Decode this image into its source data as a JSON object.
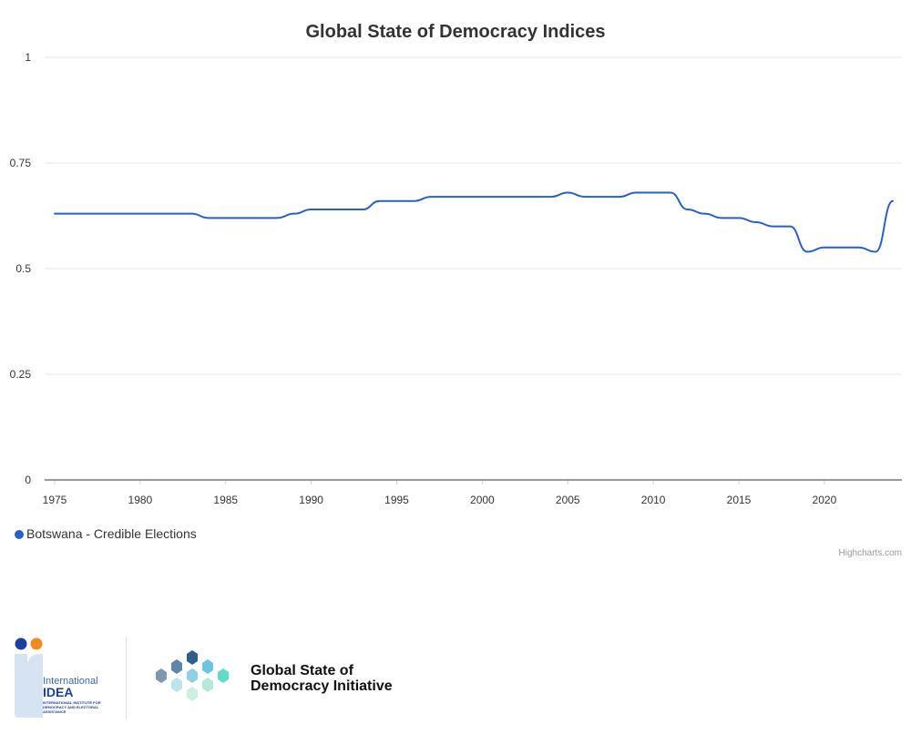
{
  "chart_data": {
    "type": "line",
    "title": "Global State of Democracy Indices",
    "xlabel": "",
    "ylabel": "",
    "xlim": [
      1975,
      2024
    ],
    "ylim": [
      0,
      1
    ],
    "x_ticks": [
      "1975",
      "1980",
      "1985",
      "1990",
      "1995",
      "2000",
      "2005",
      "2010",
      "2015",
      "2020"
    ],
    "y_ticks": [
      "0",
      "0.25",
      "0.5",
      "0.75",
      "1"
    ],
    "grid": true,
    "legend_position": "bottom-left",
    "series": [
      {
        "name": "Botswana - Credible Elections",
        "color": "#2a5fc6",
        "x": [
          1975,
          1976,
          1977,
          1978,
          1979,
          1980,
          1981,
          1982,
          1983,
          1984,
          1985,
          1986,
          1987,
          1988,
          1989,
          1990,
          1991,
          1992,
          1993,
          1994,
          1995,
          1996,
          1997,
          1998,
          1999,
          2000,
          2001,
          2002,
          2003,
          2004,
          2005,
          2006,
          2007,
          2008,
          2009,
          2010,
          2011,
          2012,
          2013,
          2014,
          2015,
          2016,
          2017,
          2018,
          2019,
          2020,
          2021,
          2022,
          2023,
          2024
        ],
        "values": [
          0.63,
          0.63,
          0.63,
          0.63,
          0.63,
          0.63,
          0.63,
          0.63,
          0.63,
          0.62,
          0.62,
          0.62,
          0.62,
          0.62,
          0.63,
          0.64,
          0.64,
          0.64,
          0.64,
          0.66,
          0.66,
          0.66,
          0.67,
          0.67,
          0.67,
          0.67,
          0.67,
          0.67,
          0.67,
          0.67,
          0.68,
          0.67,
          0.67,
          0.67,
          0.68,
          0.68,
          0.68,
          0.64,
          0.63,
          0.62,
          0.62,
          0.61,
          0.6,
          0.6,
          0.54,
          0.55,
          0.55,
          0.55,
          0.54,
          0.66
        ]
      }
    ]
  },
  "credits": "Highcharts.com",
  "footer": {
    "idea_word": "International",
    "idea_strong": "IDEA",
    "idea_sub": "International Institute for Democracy and Electoral Assistance",
    "gsod_line1": "Global State of",
    "gsod_line2": "Democracy Initiative"
  }
}
